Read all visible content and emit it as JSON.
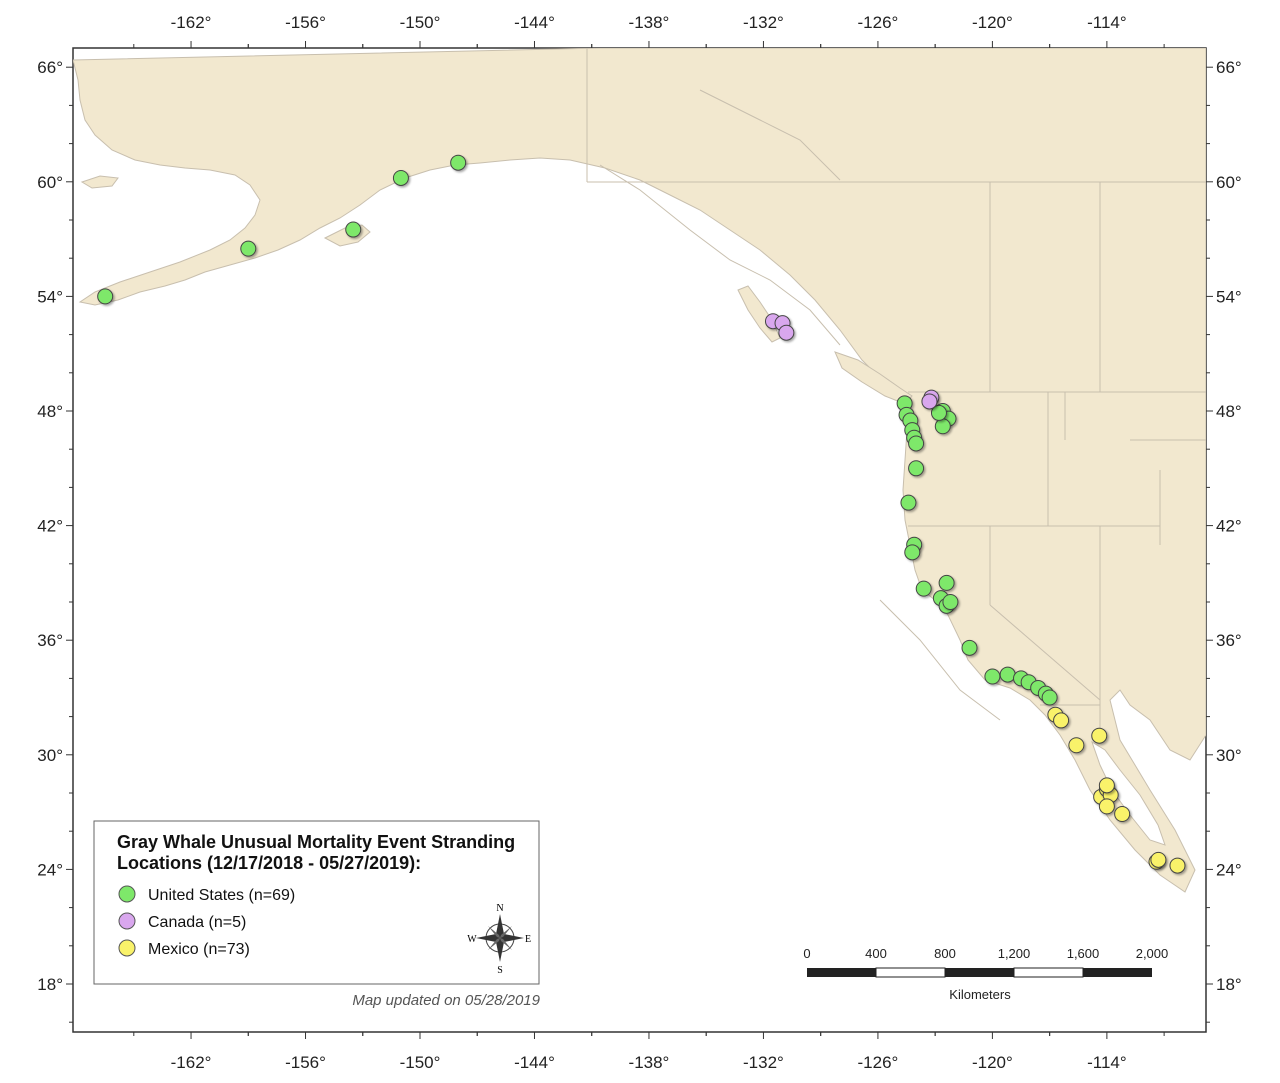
{
  "map": {
    "latitude_ticks": [
      "66°",
      "60°",
      "54°",
      "48°",
      "42°",
      "36°",
      "30°",
      "24°",
      "18°"
    ],
    "longitude_ticks": [
      "-162°",
      "-156°",
      "-150°",
      "-144°",
      "-138°",
      "-132°",
      "-126°",
      "-120°",
      "-114°"
    ],
    "lat_values": [
      66,
      60,
      54,
      48,
      42,
      36,
      30,
      24,
      18
    ],
    "lon_values": [
      -162,
      -156,
      -150,
      -144,
      -138,
      -132,
      -126,
      -120,
      -114
    ],
    "land_color": "#f2e8cf",
    "ocean_color": "#ffffff",
    "border_color": "#c8bfae"
  },
  "legend": {
    "title_line1": "Gray Whale Unusual Mortality Event Stranding",
    "title_line2": "Locations (12/17/2018 - 05/27/2019):",
    "items": [
      {
        "label": "United States (n=69)",
        "color": "#7ee86a"
      },
      {
        "label": "Canada (n=5)",
        "color": "#d9a7ee"
      },
      {
        "label": "Mexico (n=73)",
        "color": "#f9f26a"
      }
    ],
    "compass": {
      "n": "N",
      "s": "S",
      "e": "E",
      "w": "W"
    }
  },
  "note": "Map updated on 05/28/2019",
  "scale_bar": {
    "labels": [
      "0",
      "400",
      "800",
      "1,200",
      "1,600",
      "2,000"
    ],
    "unit": "Kilometers"
  },
  "strandings": {
    "us": [
      [
        -166.5,
        54.0
      ],
      [
        -159.0,
        56.5
      ],
      [
        -153.5,
        57.5
      ],
      [
        -151.0,
        60.2
      ],
      [
        -148.0,
        61.0
      ],
      [
        -124.6,
        48.4
      ],
      [
        -124.5,
        47.8
      ],
      [
        -124.3,
        47.5
      ],
      [
        -124.2,
        47.0
      ],
      [
        -124.1,
        46.6
      ],
      [
        -124.0,
        46.3
      ],
      [
        -124.0,
        45.0
      ],
      [
        -124.4,
        43.2
      ],
      [
        -124.1,
        41.0
      ],
      [
        -124.2,
        40.6
      ],
      [
        -123.6,
        38.7
      ],
      [
        -122.7,
        38.2
      ],
      [
        -122.4,
        37.8
      ],
      [
        -122.2,
        38.0
      ],
      [
        -122.4,
        39.0
      ],
      [
        -122.6,
        48.0
      ],
      [
        -122.3,
        47.6
      ],
      [
        -122.6,
        47.2
      ],
      [
        -122.8,
        47.9
      ],
      [
        -121.2,
        35.6
      ],
      [
        -120.0,
        34.1
      ],
      [
        -119.2,
        34.2
      ],
      [
        -118.5,
        34.0
      ],
      [
        -118.1,
        33.8
      ],
      [
        -117.6,
        33.5
      ],
      [
        -117.2,
        33.2
      ],
      [
        -117.0,
        33.0
      ]
    ],
    "ca": [
      [
        -131.5,
        52.7
      ],
      [
        -131.0,
        52.6
      ],
      [
        -130.8,
        52.1
      ],
      [
        -123.2,
        48.7
      ],
      [
        -123.3,
        48.5
      ]
    ],
    "mx": [
      [
        -116.7,
        32.1
      ],
      [
        -116.4,
        31.8
      ],
      [
        -115.6,
        30.5
      ],
      [
        -114.4,
        31.0
      ],
      [
        -114.3,
        27.8
      ],
      [
        -114.0,
        28.2
      ],
      [
        -113.8,
        27.9
      ],
      [
        -114.0,
        27.3
      ],
      [
        -113.2,
        26.9
      ],
      [
        -114.0,
        28.4
      ],
      [
        -111.4,
        24.4
      ],
      [
        -110.3,
        24.2
      ],
      [
        -111.3,
        24.5
      ]
    ]
  }
}
